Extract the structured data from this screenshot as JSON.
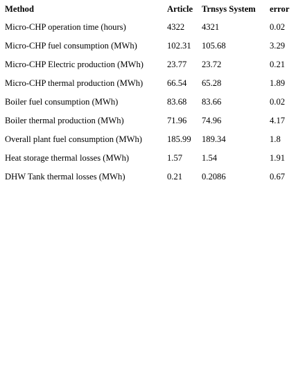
{
  "table": {
    "headers": [
      "Method",
      "Article",
      "Trnsys System",
      "error"
    ],
    "rows": [
      [
        "Micro-CHP operation time (hours)",
        "4322",
        "4321",
        "0.02"
      ],
      [
        "Micro-CHP fuel consumption (MWh)",
        "102.31",
        "105.68",
        "3.29"
      ],
      [
        "Micro-CHP Electric production (MWh)",
        "23.77",
        "23.72",
        "0.21"
      ],
      [
        "Micro-CHP thermal production (MWh)",
        "66.54",
        "65.28",
        "1.89"
      ],
      [
        "Boiler fuel consumption (MWh)",
        "83.68",
        "83.66",
        "0.02"
      ],
      [
        "Boiler thermal production (MWh)",
        "71.96",
        "74.96",
        "4.17"
      ],
      [
        "Overall plant fuel consumption (MWh)",
        "185.99",
        "189.34",
        "1.8"
      ],
      [
        "Heat storage thermal losses (MWh)",
        "1.57",
        "1.54",
        "1.91"
      ],
      [
        "DHW Tank thermal losses (MWh)",
        "0.21",
        "0.2086",
        "0.67"
      ]
    ]
  }
}
